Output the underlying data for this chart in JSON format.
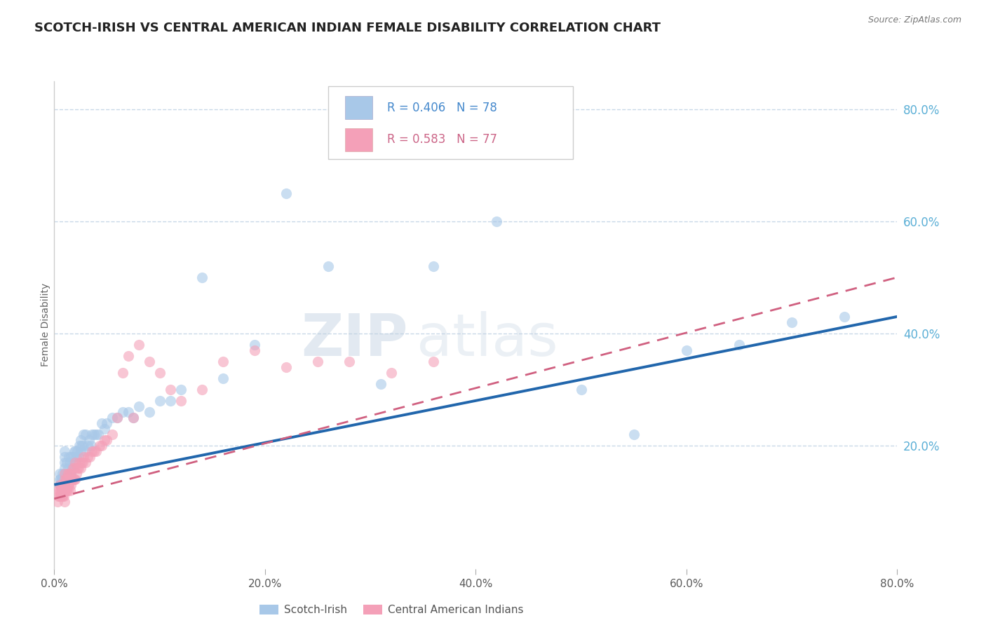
{
  "title": "SCOTCH-IRISH VS CENTRAL AMERICAN INDIAN FEMALE DISABILITY CORRELATION CHART",
  "source": "Source: ZipAtlas.com",
  "ylabel": "Female Disability",
  "right_yticks": [
    "80.0%",
    "60.0%",
    "40.0%",
    "20.0%"
  ],
  "right_ytick_vals": [
    0.8,
    0.6,
    0.4,
    0.2
  ],
  "xmin": 0.0,
  "xmax": 0.8,
  "ymin": -0.02,
  "ymax": 0.85,
  "color_blue": "#a8c8e8",
  "color_pink": "#f4a0b8",
  "line_blue": "#2166ac",
  "line_pink": "#d06080",
  "background": "#ffffff",
  "grid_color": "#c8d8e8",
  "watermark_zip": "ZIP",
  "watermark_atlas": "atlas",
  "scotch_irish_x": [
    0.005,
    0.005,
    0.005,
    0.006,
    0.006,
    0.007,
    0.007,
    0.008,
    0.008,
    0.009,
    0.01,
    0.01,
    0.01,
    0.01,
    0.01,
    0.01,
    0.01,
    0.012,
    0.012,
    0.013,
    0.013,
    0.014,
    0.015,
    0.015,
    0.015,
    0.016,
    0.016,
    0.017,
    0.018,
    0.018,
    0.019,
    0.02,
    0.02,
    0.021,
    0.022,
    0.023,
    0.024,
    0.025,
    0.025,
    0.026,
    0.027,
    0.028,
    0.03,
    0.03,
    0.032,
    0.033,
    0.035,
    0.036,
    0.038,
    0.04,
    0.042,
    0.045,
    0.048,
    0.05,
    0.055,
    0.06,
    0.065,
    0.07,
    0.075,
    0.08,
    0.09,
    0.1,
    0.11,
    0.12,
    0.14,
    0.16,
    0.19,
    0.22,
    0.26,
    0.31,
    0.36,
    0.42,
    0.5,
    0.55,
    0.6,
    0.65,
    0.7,
    0.75
  ],
  "scotch_irish_y": [
    0.13,
    0.14,
    0.15,
    0.13,
    0.14,
    0.12,
    0.14,
    0.14,
    0.15,
    0.13,
    0.13,
    0.14,
    0.15,
    0.16,
    0.17,
    0.18,
    0.19,
    0.15,
    0.17,
    0.14,
    0.16,
    0.18,
    0.14,
    0.15,
    0.17,
    0.15,
    0.18,
    0.16,
    0.16,
    0.18,
    0.19,
    0.17,
    0.19,
    0.18,
    0.19,
    0.18,
    0.2,
    0.19,
    0.21,
    0.2,
    0.2,
    0.22,
    0.19,
    0.22,
    0.2,
    0.21,
    0.2,
    0.22,
    0.22,
    0.22,
    0.22,
    0.24,
    0.23,
    0.24,
    0.25,
    0.25,
    0.26,
    0.26,
    0.25,
    0.27,
    0.26,
    0.28,
    0.28,
    0.3,
    0.5,
    0.32,
    0.38,
    0.65,
    0.52,
    0.31,
    0.52,
    0.6,
    0.3,
    0.22,
    0.37,
    0.38,
    0.42,
    0.43
  ],
  "central_american_x": [
    0.003,
    0.004,
    0.004,
    0.005,
    0.005,
    0.005,
    0.006,
    0.006,
    0.007,
    0.007,
    0.008,
    0.008,
    0.008,
    0.009,
    0.009,
    0.009,
    0.01,
    0.01,
    0.01,
    0.01,
    0.01,
    0.011,
    0.011,
    0.012,
    0.012,
    0.013,
    0.013,
    0.013,
    0.014,
    0.014,
    0.015,
    0.015,
    0.016,
    0.016,
    0.017,
    0.018,
    0.018,
    0.019,
    0.019,
    0.02,
    0.02,
    0.021,
    0.022,
    0.023,
    0.024,
    0.025,
    0.026,
    0.027,
    0.028,
    0.03,
    0.032,
    0.034,
    0.036,
    0.038,
    0.04,
    0.043,
    0.045,
    0.048,
    0.05,
    0.055,
    0.06,
    0.065,
    0.07,
    0.075,
    0.08,
    0.09,
    0.1,
    0.11,
    0.12,
    0.14,
    0.16,
    0.19,
    0.22,
    0.25,
    0.28,
    0.32,
    0.36
  ],
  "central_american_y": [
    0.1,
    0.11,
    0.12,
    0.11,
    0.12,
    0.13,
    0.11,
    0.12,
    0.11,
    0.12,
    0.11,
    0.12,
    0.13,
    0.11,
    0.12,
    0.13,
    0.12,
    0.13,
    0.14,
    0.15,
    0.1,
    0.12,
    0.14,
    0.12,
    0.14,
    0.12,
    0.13,
    0.15,
    0.13,
    0.15,
    0.12,
    0.14,
    0.13,
    0.15,
    0.14,
    0.14,
    0.16,
    0.14,
    0.16,
    0.14,
    0.17,
    0.15,
    0.16,
    0.16,
    0.17,
    0.16,
    0.17,
    0.17,
    0.18,
    0.17,
    0.18,
    0.18,
    0.19,
    0.19,
    0.19,
    0.2,
    0.2,
    0.21,
    0.21,
    0.22,
    0.25,
    0.33,
    0.36,
    0.25,
    0.38,
    0.35,
    0.33,
    0.3,
    0.28,
    0.3,
    0.35,
    0.37,
    0.34,
    0.35,
    0.35,
    0.33,
    0.35
  ],
  "trend_si_x0": 0.0,
  "trend_si_y0": 0.13,
  "trend_si_x1": 0.8,
  "trend_si_y1": 0.43,
  "trend_ca_x0": 0.0,
  "trend_ca_y0": 0.105,
  "trend_ca_x1": 0.8,
  "trend_ca_y1": 0.5
}
